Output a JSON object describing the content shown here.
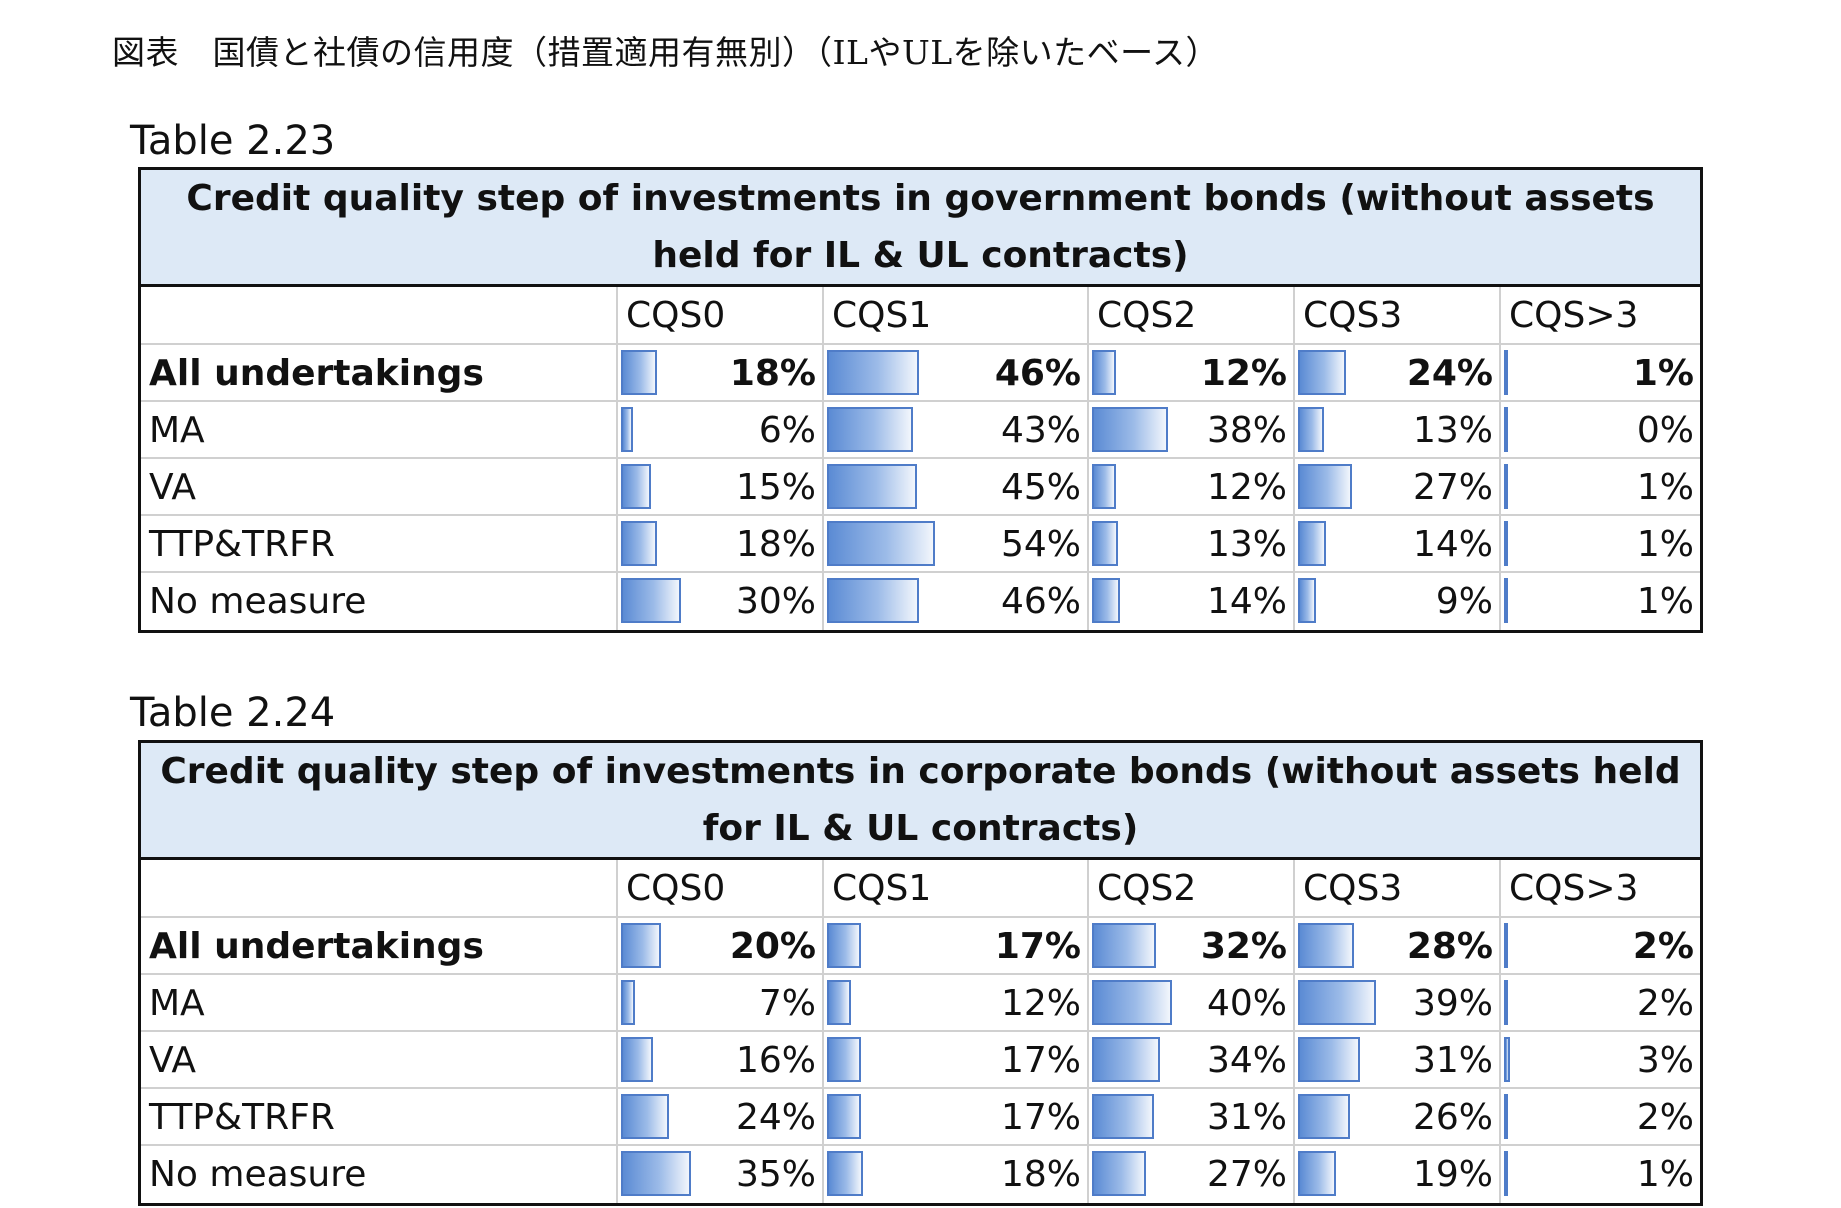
{
  "caption": "図表　国債と社債の信用度（措置適用有無別）（ILやULを除いたベース）",
  "columns": [
    "CQS0",
    "CQS1",
    "CQS2",
    "CQS3",
    "CQS>3"
  ],
  "chart_data": [
    {
      "type": "table",
      "label": "Table 2.23",
      "title": "Credit quality step of investments in government bonds (without assets held for IL & UL contracts)",
      "columns": [
        "CQS0",
        "CQS1",
        "CQS2",
        "CQS3",
        "CQS>3"
      ],
      "rows": [
        {
          "name": "All undertakings",
          "values": [
            18,
            46,
            12,
            24,
            1
          ],
          "display": [
            "18%",
            "46%",
            "12%",
            "24%",
            "1%"
          ]
        },
        {
          "name": "MA",
          "values": [
            6,
            43,
            38,
            13,
            0
          ],
          "display": [
            "6%",
            "43%",
            "38%",
            "13%",
            "0%"
          ]
        },
        {
          "name": "VA",
          "values": [
            15,
            45,
            12,
            27,
            1
          ],
          "display": [
            "15%",
            "45%",
            "12%",
            "27%",
            "1%"
          ]
        },
        {
          "name": "TTP&TRFR",
          "values": [
            18,
            54,
            13,
            14,
            1
          ],
          "display": [
            "18%",
            "54%",
            "13%",
            "14%",
            "1%"
          ]
        },
        {
          "name": "No measure",
          "values": [
            30,
            46,
            14,
            9,
            1
          ],
          "display": [
            "30%",
            "46%",
            "14%",
            "9%",
            "1%"
          ]
        }
      ]
    },
    {
      "type": "table",
      "label": "Table 2.24",
      "title": "Credit quality step of investments in corporate bonds (without assets held for IL & UL contracts)",
      "columns": [
        "CQS0",
        "CQS1",
        "CQS2",
        "CQS3",
        "CQS>3"
      ],
      "rows": [
        {
          "name": "All undertakings",
          "values": [
            20,
            17,
            32,
            28,
            2
          ],
          "display": [
            "20%",
            "17%",
            "32%",
            "28%",
            "2%"
          ]
        },
        {
          "name": "MA",
          "values": [
            7,
            12,
            40,
            39,
            2
          ],
          "display": [
            "7%",
            "12%",
            "40%",
            "39%",
            "2%"
          ]
        },
        {
          "name": "VA",
          "values": [
            16,
            17,
            34,
            31,
            3
          ],
          "display": [
            "16%",
            "17%",
            "34%",
            "31%",
            "3%"
          ]
        },
        {
          "name": "TTP&TRFR",
          "values": [
            24,
            17,
            31,
            26,
            2
          ],
          "display": [
            "24%",
            "17%",
            "31%",
            "26%",
            "2%"
          ]
        },
        {
          "name": "No measure",
          "values": [
            35,
            18,
            27,
            19,
            1
          ],
          "display": [
            "35%",
            "18%",
            "27%",
            "19%",
            "1%"
          ]
        }
      ]
    }
  ],
  "colors": {
    "bar_border": "#4f7cc8",
    "bar_fill": "#5b8bd4",
    "title_bg": "#dde9f6"
  }
}
